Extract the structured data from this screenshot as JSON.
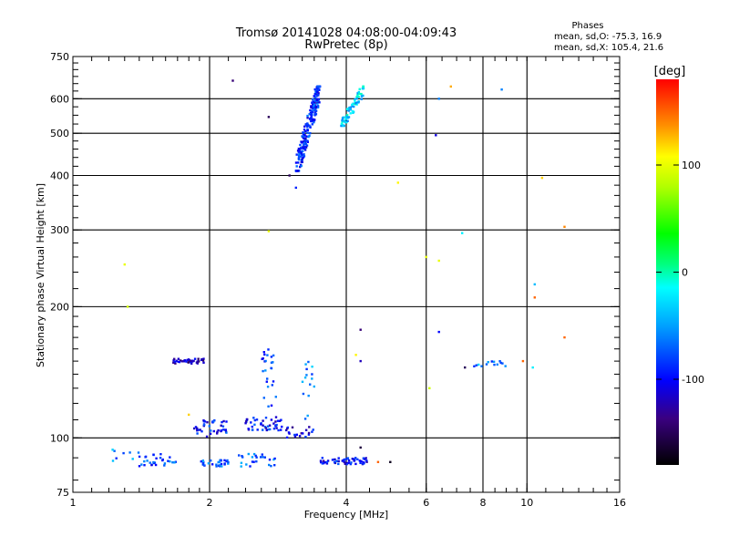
{
  "chart_data": {
    "type": "scatter",
    "title": "Tromsø 20141028 04:08:00-04:09:43",
    "subtitle": "RwPretec (8p)",
    "xlabel": "Frequency [MHz]",
    "ylabel": "Stationary phase Virtual Height [km]",
    "x_scale": "log",
    "y_scale": "log",
    "xlim": [
      1,
      16
    ],
    "ylim": [
      75,
      750
    ],
    "x_ticks": [
      1,
      2,
      4,
      6,
      8,
      10,
      16
    ],
    "x_tick_labels": [
      "1",
      "2",
      "4",
      "6",
      "8",
      "10",
      "16"
    ],
    "y_ticks": [
      75,
      100,
      200,
      300,
      400,
      500,
      600,
      750
    ],
    "y_tick_labels": [
      "75",
      "100",
      "200",
      "300",
      "400",
      "500",
      "600",
      "750"
    ],
    "grid_x": [
      2,
      4,
      6,
      8,
      10
    ],
    "grid_y": [
      100,
      200,
      300,
      400,
      500,
      600
    ],
    "legend": {
      "heading": "Phases",
      "line1": "mean, sd,O: -75.3, 16.9",
      "line2": "mean, sd,X: 105.4, 21.6"
    },
    "colorbar": {
      "label": "[deg]",
      "range": [
        -180,
        180
      ],
      "ticks": [
        100,
        0,
        -100
      ],
      "tick_labels": [
        "100",
        "0",
        "-100"
      ]
    },
    "clusters": [
      {
        "f": [
          3.1,
          3.5
        ],
        "h": [
          410,
          640
        ],
        "phase": -90,
        "n": 230,
        "trend": true
      },
      {
        "f": [
          3.9,
          4.4
        ],
        "h": [
          520,
          640
        ],
        "phase": -30,
        "n": 70,
        "trend": true
      },
      {
        "f": [
          1.65,
          1.95
        ],
        "h": [
          148,
          152
        ],
        "phase": -120,
        "n": 40,
        "trend": false
      },
      {
        "f": [
          1.85,
          2.2
        ],
        "h": [
          100,
          110
        ],
        "phase": -95,
        "n": 40,
        "trend": false
      },
      {
        "f": [
          2.4,
          2.9
        ],
        "h": [
          104,
          112
        ],
        "phase": -95,
        "n": 45,
        "trend": false
      },
      {
        "f": [
          2.9,
          3.4
        ],
        "h": [
          100,
          106
        ],
        "phase": -110,
        "n": 20,
        "trend": false
      },
      {
        "f": [
          2.6,
          2.8
        ],
        "h": [
          118,
          160
        ],
        "phase": -80,
        "n": 25,
        "trend": false
      },
      {
        "f": [
          3.2,
          3.4
        ],
        "h": [
          110,
          150
        ],
        "phase": -60,
        "n": 15,
        "trend": false
      },
      {
        "f": [
          1.4,
          1.7
        ],
        "h": [
          86,
          92
        ],
        "phase": -80,
        "n": 30,
        "trend": false
      },
      {
        "f": [
          1.9,
          2.2
        ],
        "h": [
          86,
          89
        ],
        "phase": -70,
        "n": 30,
        "trend": false
      },
      {
        "f": [
          2.3,
          2.8
        ],
        "h": [
          86,
          92
        ],
        "phase": -70,
        "n": 25,
        "trend": false
      },
      {
        "f": [
          3.5,
          4.5
        ],
        "h": [
          87,
          90
        ],
        "phase": -100,
        "n": 60,
        "trend": false
      },
      {
        "f": [
          7.6,
          9.0
        ],
        "h": [
          145,
          150
        ],
        "phase": -60,
        "n": 14,
        "trend": false
      },
      {
        "f": [
          1.2,
          1.5
        ],
        "h": [
          88,
          95
        ],
        "phase": -60,
        "n": 8,
        "trend": false
      }
    ],
    "points": [
      {
        "x": 2.25,
        "y": 660,
        "phase": -140
      },
      {
        "x": 2.7,
        "y": 545,
        "phase": -150
      },
      {
        "x": 6.3,
        "y": 495,
        "phase": -110
      },
      {
        "x": 6.4,
        "y": 600,
        "phase": -60
      },
      {
        "x": 6.8,
        "y": 640,
        "phase": 130
      },
      {
        "x": 8.8,
        "y": 630,
        "phase": -60
      },
      {
        "x": 10.8,
        "y": 395,
        "phase": 120
      },
      {
        "x": 12.1,
        "y": 305,
        "phase": 140
      },
      {
        "x": 5.2,
        "y": 385,
        "phase": 110
      },
      {
        "x": 7.2,
        "y": 295,
        "phase": -20
      },
      {
        "x": 6.0,
        "y": 260,
        "phase": 100
      },
      {
        "x": 6.4,
        "y": 255,
        "phase": 100
      },
      {
        "x": 2.7,
        "y": 298,
        "phase": 100
      },
      {
        "x": 1.3,
        "y": 250,
        "phase": 100
      },
      {
        "x": 1.32,
        "y": 200,
        "phase": 90
      },
      {
        "x": 10.4,
        "y": 225,
        "phase": -40
      },
      {
        "x": 10.4,
        "y": 210,
        "phase": 150
      },
      {
        "x": 12.1,
        "y": 170,
        "phase": 150
      },
      {
        "x": 4.3,
        "y": 177,
        "phase": -140
      },
      {
        "x": 6.4,
        "y": 175,
        "phase": -100
      },
      {
        "x": 4.2,
        "y": 155,
        "phase": 110
      },
      {
        "x": 6.1,
        "y": 130,
        "phase": 90
      },
      {
        "x": 4.3,
        "y": 150,
        "phase": -120
      },
      {
        "x": 7.3,
        "y": 145,
        "phase": -150
      },
      {
        "x": 9.8,
        "y": 150,
        "phase": 150
      },
      {
        "x": 10.3,
        "y": 145,
        "phase": -20
      },
      {
        "x": 3.0,
        "y": 400,
        "phase": -150
      },
      {
        "x": 3.1,
        "y": 375,
        "phase": -90
      },
      {
        "x": 4.3,
        "y": 95,
        "phase": -160
      },
      {
        "x": 4.7,
        "y": 88,
        "phase": 150
      },
      {
        "x": 5.0,
        "y": 88,
        "phase": -170
      },
      {
        "x": 1.8,
        "y": 113,
        "phase": 120
      }
    ]
  }
}
